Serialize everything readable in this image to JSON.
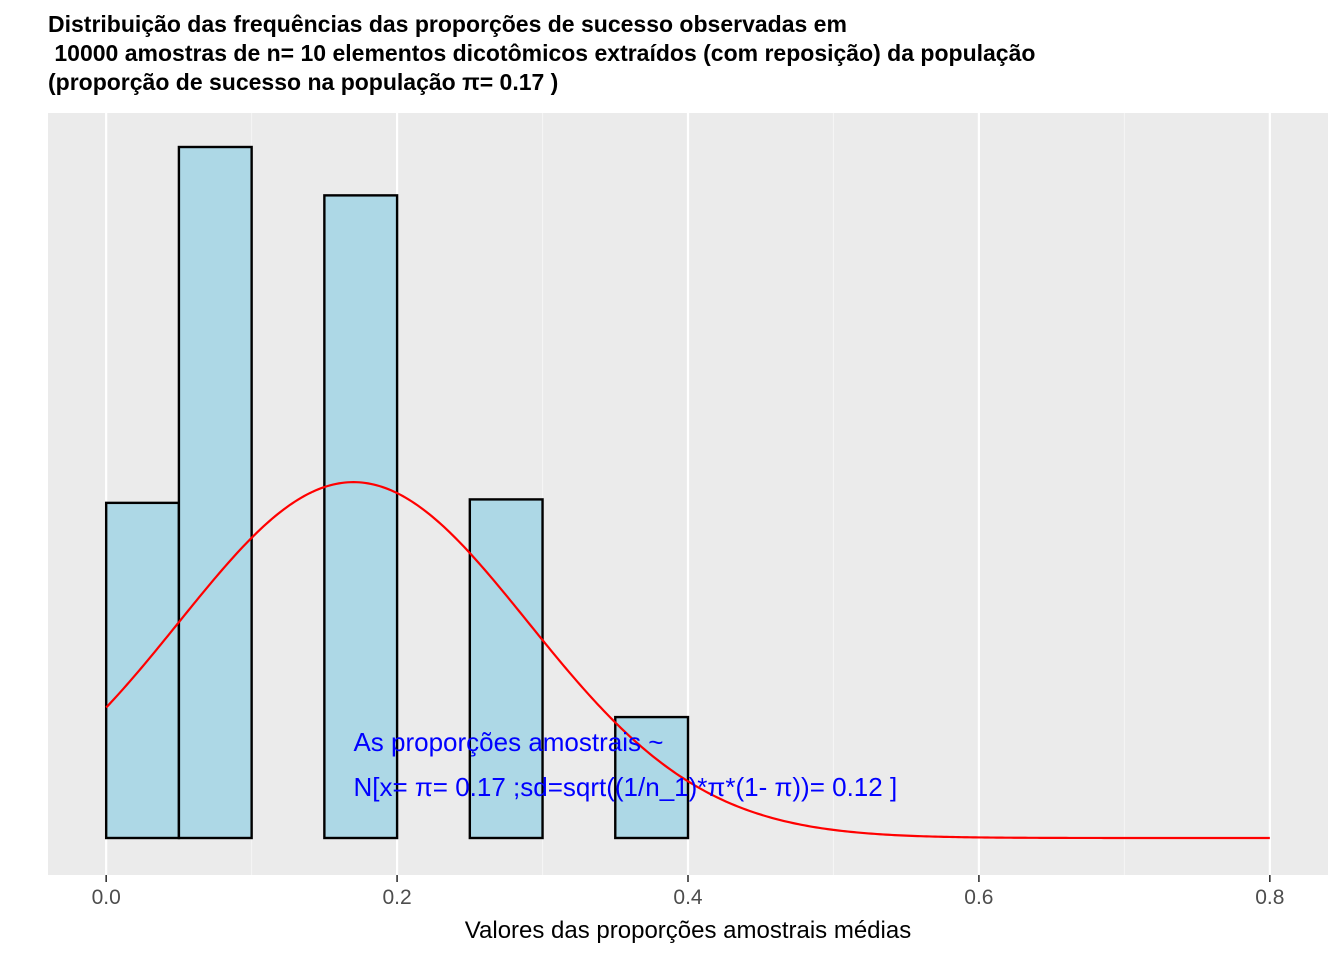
{
  "chart_data": {
    "type": "bar",
    "title_lines": [
      "Distribuição das frequências das proporções de sucesso observadas em",
      " 10000 amostras de n= 10 elementos dicotômicos extraídos (com reposição) da população",
      "(proporção de sucesso na população π= 0.17 )"
    ],
    "xlabel": "Valores das proporções amostrais médias",
    "ylabel": "",
    "xlim": [
      -0.04,
      0.84
    ],
    "ylim": [
      0,
      1.07
    ],
    "x_ticks": [
      0.0,
      0.2,
      0.4,
      0.6,
      0.8
    ],
    "x_tick_labels": [
      "0.0",
      "0.2",
      "0.4",
      "0.6",
      "0.8"
    ],
    "y_axis_labels_shown": false,
    "bars": [
      {
        "x0": 0.0,
        "x1": 0.05,
        "value": 0.485
      },
      {
        "x0": 0.05,
        "x1": 0.1,
        "value": 1.0
      },
      {
        "x0": 0.1,
        "x1": 0.15,
        "value": 0.0
      },
      {
        "x0": 0.15,
        "x1": 0.2,
        "value": 0.93
      },
      {
        "x0": 0.2,
        "x1": 0.25,
        "value": 0.0
      },
      {
        "x0": 0.25,
        "x1": 0.3,
        "value": 0.49
      },
      {
        "x0": 0.3,
        "x1": 0.35,
        "value": 0.0
      },
      {
        "x0": 0.35,
        "x1": 0.4,
        "value": 0.175
      }
    ],
    "normal_curve": {
      "mean": 0.17,
      "sd": 0.12,
      "x_range": [
        0.0,
        0.8
      ],
      "peak": 0.515
    },
    "annotation_lines": [
      "As proporções amostrais ~",
      "N[x= π= 0.17 ;sd=sqrt((1/n_1)*π*(1- π))= 0.12 ]"
    ],
    "grid": true
  },
  "colors": {
    "panel_bg": "#ebebeb",
    "grid_major": "#ffffff",
    "grid_minor": "#f5f5f5",
    "bar_fill": "#add8e6",
    "bar_stroke": "#000000",
    "curve": "#ff0000",
    "annotation": "#0000ff",
    "tick_text": "#4d4d4d"
  }
}
